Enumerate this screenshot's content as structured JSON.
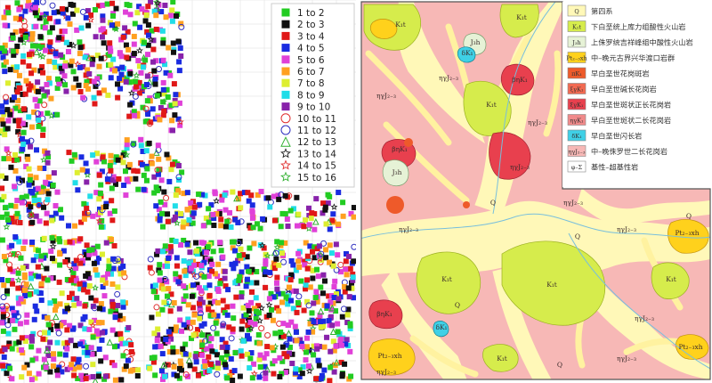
{
  "left_map": {
    "legend": [
      {
        "label": "1 to 2",
        "symbol": "square",
        "color": "#22cc22"
      },
      {
        "label": "2 to 3",
        "symbol": "square",
        "color": "#111111"
      },
      {
        "label": "3 to 4",
        "symbol": "square",
        "color": "#e01818"
      },
      {
        "label": "4 to 5",
        "symbol": "square",
        "color": "#1a2be0"
      },
      {
        "label": "5 to 6",
        "symbol": "square",
        "color": "#e040d8"
      },
      {
        "label": "6 to 7",
        "symbol": "square",
        "color": "#ffa020"
      },
      {
        "label": "7 to 8",
        "symbol": "square",
        "color": "#ddee30"
      },
      {
        "label": "8 to 9",
        "symbol": "square",
        "color": "#20dde8"
      },
      {
        "label": "9 to 10",
        "symbol": "square",
        "color": "#8822aa"
      },
      {
        "label": "10 to 11",
        "symbol": "circle",
        "color": "#e03030"
      },
      {
        "label": "11 to 12",
        "symbol": "circle",
        "color": "#3030c0"
      },
      {
        "label": "12 to 13",
        "symbol": "triangle",
        "color": "#30b030"
      },
      {
        "label": "13 to 14",
        "symbol": "star",
        "color": "#222222"
      },
      {
        "label": "14 to 15",
        "symbol": "star",
        "color": "#e03030"
      },
      {
        "label": "15 to 16",
        "symbol": "star",
        "color": "#30b030"
      }
    ]
  },
  "right_map": {
    "legend": [
      {
        "code": "Q",
        "label": "第四系",
        "color": "#fff8b8"
      },
      {
        "code": "K₁t",
        "label": "下白垩统上库力组酸性火山岩",
        "color": "#d6ec4c"
      },
      {
        "code": "J₃h",
        "label": "上侏罗统吉祥峰组中酸性火山岩",
        "color": "#e6f2d6"
      },
      {
        "code": "Pt₂₋₃xh",
        "label": "中–晚元古界兴华渡口岩群",
        "color": "#ffd11c"
      },
      {
        "code": "πK₁",
        "label": "早白垩世花岗斑岩",
        "color": "#ee5a2a"
      },
      {
        "code": "ξγK₁",
        "label": "早白垩世碱长花岗岩",
        "color": "#f26a52"
      },
      {
        "code": "ξγK₁",
        "label": "早白垩世斑状正长花岗岩",
        "color": "#e8404e"
      },
      {
        "code": "ηγK₁",
        "label": "早白垩世斑状二长花岗岩",
        "color": "#f08a8a"
      },
      {
        "code": "δK₁",
        "label": "早白垩世闪长岩",
        "color": "#3fd0e6"
      },
      {
        "code": "ηγJ₂₋₃",
        "label": "中–晚侏罗世二长花岗岩",
        "color": "#f7b8b6"
      },
      {
        "code": "φ–Σ",
        "label": "基性–超基性岩",
        "color": "#ffffff"
      }
    ],
    "unit_labels": [
      {
        "text": "K₁t"
      },
      {
        "text": "K₁t"
      },
      {
        "text": "K₁t"
      },
      {
        "text": "K₁t"
      },
      {
        "text": "K₁t"
      },
      {
        "text": "K₁t"
      },
      {
        "text": "K₁t"
      },
      {
        "text": "ηγJ₂₋₃"
      },
      {
        "text": "ηγJ₂₋₃"
      },
      {
        "text": "ηγJ₂₋₃"
      },
      {
        "text": "ηγJ₂₋₃"
      },
      {
        "text": "ηγJ₂₋₃"
      },
      {
        "text": "ηγJ₂₋₃"
      },
      {
        "text": "ηγJ₂₋₃"
      },
      {
        "text": "ηγJ₂₋₃"
      },
      {
        "text": "ηγJ₂₋₃"
      },
      {
        "text": "ηγJ₂₋₃"
      },
      {
        "text": "βηK₁"
      },
      {
        "text": "βηK₁"
      },
      {
        "text": "βηK₁"
      },
      {
        "text": "J₃h"
      },
      {
        "text": "J₃h"
      },
      {
        "text": "δK₁"
      },
      {
        "text": "δK₁"
      },
      {
        "text": "Q"
      },
      {
        "text": "Q"
      },
      {
        "text": "Q"
      },
      {
        "text": "Q"
      },
      {
        "text": "Q"
      },
      {
        "text": "Pt₂₋₃xh"
      },
      {
        "text": "Pt₂₋₃xh"
      },
      {
        "text": "Pt₂₋₃xh"
      }
    ]
  }
}
